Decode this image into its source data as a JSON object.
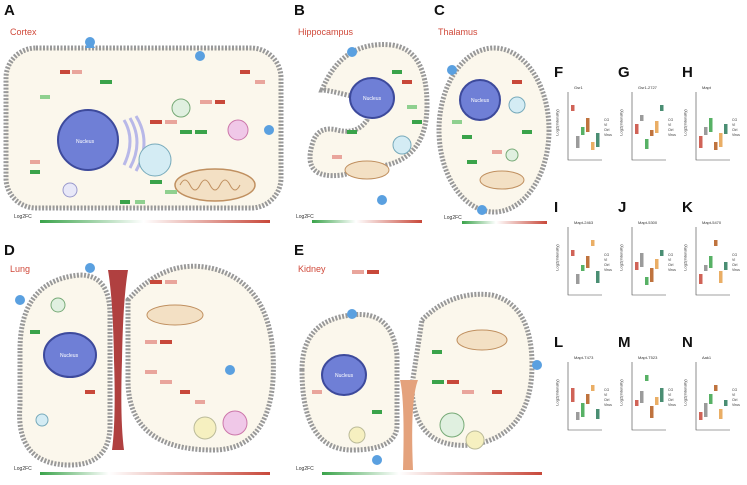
{
  "panels": {
    "A": {
      "letter": "A",
      "title": "Cortex"
    },
    "B": {
      "letter": "B",
      "title": "Hippocampus"
    },
    "C": {
      "letter": "C",
      "title": "Thalamus"
    },
    "D": {
      "letter": "D",
      "title": "Lung"
    },
    "E": {
      "letter": "E",
      "title": "Kidney"
    }
  },
  "cell_labels": {
    "nucleus": "Nucleus",
    "mitochondria": "Mitochondria",
    "proteasome": "Proteasome",
    "lysosome": "Lysosome",
    "endosome": "Endosome",
    "phagosome": "Phagosome",
    "er": "ER"
  },
  "scale": {
    "label": "Log2FC",
    "ticks_a": [
      "-5",
      "-4",
      "-3",
      "-2",
      "-1",
      "0",
      "1",
      "2",
      "3",
      "4",
      "5",
      "6"
    ],
    "ticks_b": [
      "-3",
      "-2",
      "-1",
      "0",
      "1",
      "2",
      "3",
      "4"
    ],
    "ticks_c": [
      "-3",
      "-2",
      "-1",
      "0",
      "1",
      "2",
      "3",
      "4"
    ],
    "ticks_d": [
      "-3",
      "-2",
      "-1",
      "0",
      "1",
      "2",
      "3",
      "4",
      "5",
      "6"
    ],
    "ticks_e": [
      "-4",
      "-3",
      "-2",
      "-1",
      "0",
      "1",
      "2",
      "3",
      "4",
      "5",
      "6",
      "7"
    ]
  },
  "boxplots": [
    {
      "letter": "F",
      "title": "Gsr1"
    },
    {
      "letter": "G",
      "title": "Gsr1-2727"
    },
    {
      "letter": "H",
      "title": "Mapt"
    },
    {
      "letter": "I",
      "title": "Mapt-2463"
    },
    {
      "letter": "J",
      "title": "Mapt-5300"
    },
    {
      "letter": "K",
      "title": "Mapt-5470"
    },
    {
      "letter": "L",
      "title": "Mapt-T473"
    },
    {
      "letter": "M",
      "title": "Mapt-T523"
    },
    {
      "letter": "N",
      "title": "Aak1"
    }
  ],
  "boxplot_ylabel": "Log2(Intensity)",
  "boxplot_legend": [
    "CG",
    "VI",
    "Ctrl",
    "Virus"
  ],
  "colors": {
    "red": "#c8483a",
    "green": "#3aa34a",
    "membrane": "#9a9a9a",
    "nucleus": "#6f7fd6",
    "cytosol": "#fbf7ec",
    "mito": "#f3e0c4",
    "lung_vessel": "#b04040",
    "kidney_vessel": "#e4a27c"
  }
}
